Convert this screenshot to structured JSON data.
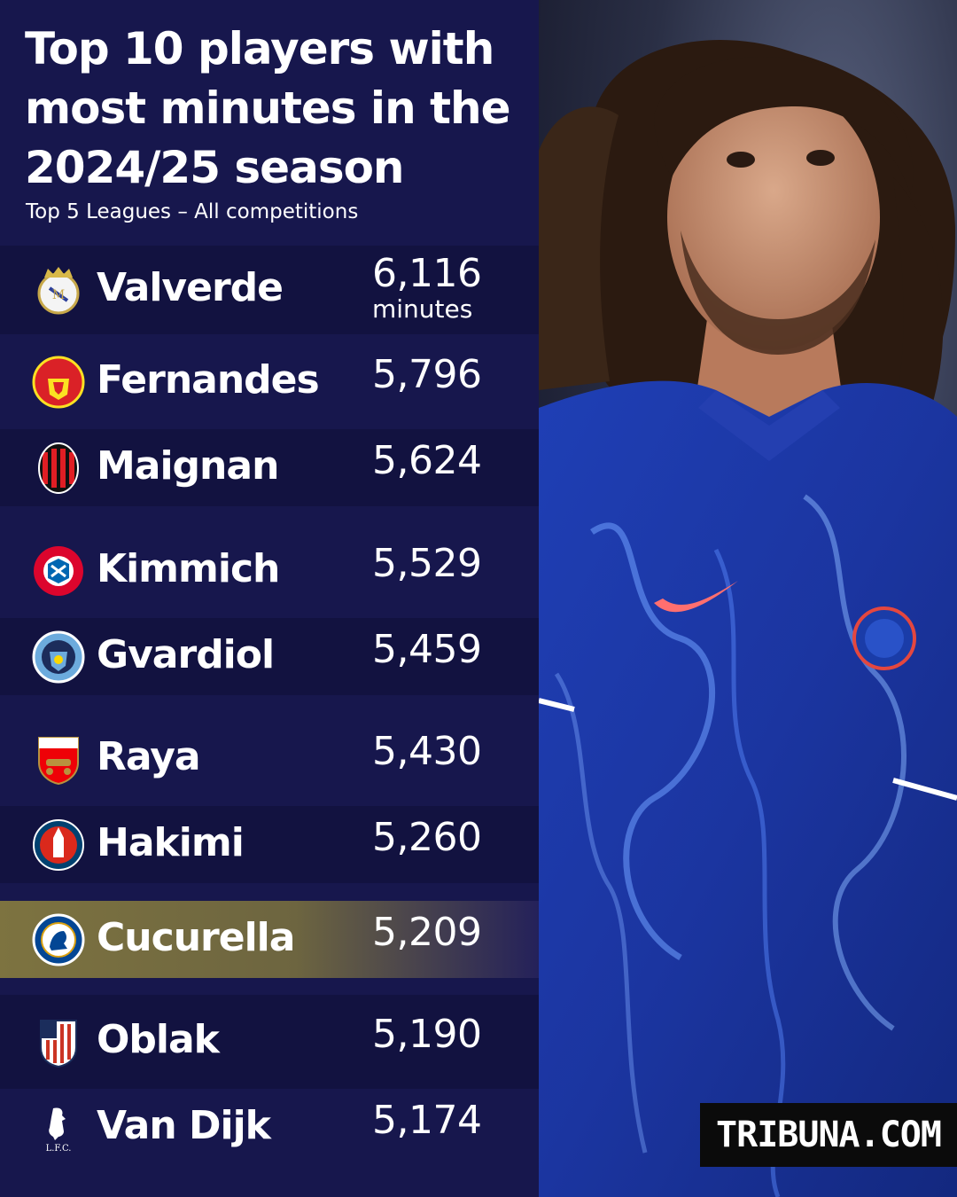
{
  "header": {
    "title": "Top 10 players with most minutes in the 2024/25 season",
    "subtitle": "Top 5 Leagues – All competitions"
  },
  "chart_data": {
    "type": "table",
    "title": "Top 10 players with most minutes in the 2024/25 season",
    "subtitle": "Top 5 Leagues – All competitions",
    "unit": "minutes",
    "categories": [
      "Valverde",
      "Fernandes",
      "Maignan",
      "Kimmich",
      "Gvardiol",
      "Raya",
      "Hakimi",
      "Cucurella",
      "Oblak",
      "Van Dijk"
    ],
    "values": [
      6116,
      5796,
      5624,
      5529,
      5459,
      5430,
      5260,
      5209,
      5190,
      5174
    ],
    "value_labels": [
      "6,116",
      "5,796",
      "5,624",
      "5,529",
      "5,459",
      "5,430",
      "5,260",
      "5,209",
      "5,190",
      "5,174"
    ],
    "crests": [
      "real-madrid-crest-icon",
      "manchester-united-crest-icon",
      "ac-milan-crest-icon",
      "bayern-munich-crest-icon",
      "manchester-city-crest-icon",
      "arsenal-crest-icon",
      "psg-crest-icon",
      "chelsea-crest-icon",
      "atletico-madrid-crest-icon",
      "liverpool-crest-icon"
    ],
    "highlighted": "Cucurella",
    "colors": {
      "background": "#17174d",
      "row_alt": "#121240",
      "highlight": "#7d7340",
      "text": "#ffffff"
    }
  },
  "photo": {
    "icon": "chelsea-player-photo"
  },
  "watermark": "TRIBUNA.COM"
}
